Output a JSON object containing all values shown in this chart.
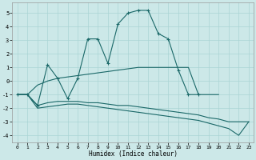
{
  "xlabel": "Humidex (Indice chaleur)",
  "xlim": [
    -0.5,
    23.5
  ],
  "ylim": [
    -4.5,
    5.8
  ],
  "xticks": [
    0,
    1,
    2,
    3,
    4,
    5,
    6,
    7,
    8,
    9,
    10,
    11,
    12,
    13,
    14,
    15,
    16,
    17,
    18,
    19,
    20,
    21,
    22,
    23
  ],
  "yticks": [
    -4,
    -3,
    -2,
    -1,
    0,
    1,
    2,
    3,
    4,
    5
  ],
  "background_color": "#cce8e8",
  "grid_color": "#aad4d4",
  "line_color": "#1a6868",
  "curve1_x": [
    0,
    1,
    2,
    3,
    4,
    5,
    6,
    7,
    8,
    9,
    10,
    11,
    12,
    13,
    14,
    15,
    16,
    17,
    18
  ],
  "curve1_y": [
    -1.0,
    -1.0,
    -1.8,
    1.2,
    0.2,
    -1.3,
    0.2,
    3.1,
    3.1,
    1.3,
    4.2,
    5.0,
    5.2,
    5.2,
    3.5,
    3.1,
    0.8,
    -1.0,
    -1.0
  ],
  "curve2_x": [
    0,
    1,
    2,
    3,
    4,
    5,
    6,
    7,
    8,
    9,
    10,
    11,
    12,
    13,
    14,
    15,
    16,
    17,
    18,
    19,
    20
  ],
  "curve2_y": [
    -1.0,
    -1.0,
    -0.3,
    0.0,
    0.2,
    0.3,
    0.4,
    0.5,
    0.6,
    0.7,
    0.8,
    0.9,
    1.0,
    1.0,
    1.0,
    1.0,
    1.0,
    1.0,
    -1.0,
    -1.0,
    -1.0
  ],
  "curve3_x": [
    0,
    1,
    2,
    3,
    4,
    5,
    6,
    7,
    8,
    9,
    10,
    11,
    12,
    13,
    14,
    15,
    16,
    17,
    18,
    19,
    20,
    21,
    22,
    23
  ],
  "curve3_y": [
    -1.0,
    -1.0,
    -1.8,
    -1.6,
    -1.5,
    -1.5,
    -1.5,
    -1.6,
    -1.6,
    -1.7,
    -1.8,
    -1.8,
    -1.9,
    -2.0,
    -2.1,
    -2.2,
    -2.3,
    -2.4,
    -2.5,
    -2.7,
    -2.8,
    -3.0,
    -3.0,
    -3.0
  ],
  "curve4_x": [
    0,
    1,
    2,
    3,
    4,
    5,
    6,
    7,
    8,
    9,
    10,
    11,
    12,
    13,
    14,
    15,
    16,
    17,
    18,
    19,
    20,
    21,
    22,
    23
  ],
  "curve4_y": [
    -1.0,
    -1.0,
    -2.0,
    -1.9,
    -1.8,
    -1.7,
    -1.7,
    -1.8,
    -1.9,
    -2.0,
    -2.1,
    -2.2,
    -2.3,
    -2.4,
    -2.5,
    -2.6,
    -2.7,
    -2.8,
    -2.9,
    -3.1,
    -3.3,
    -3.5,
    -4.0,
    -3.0
  ]
}
